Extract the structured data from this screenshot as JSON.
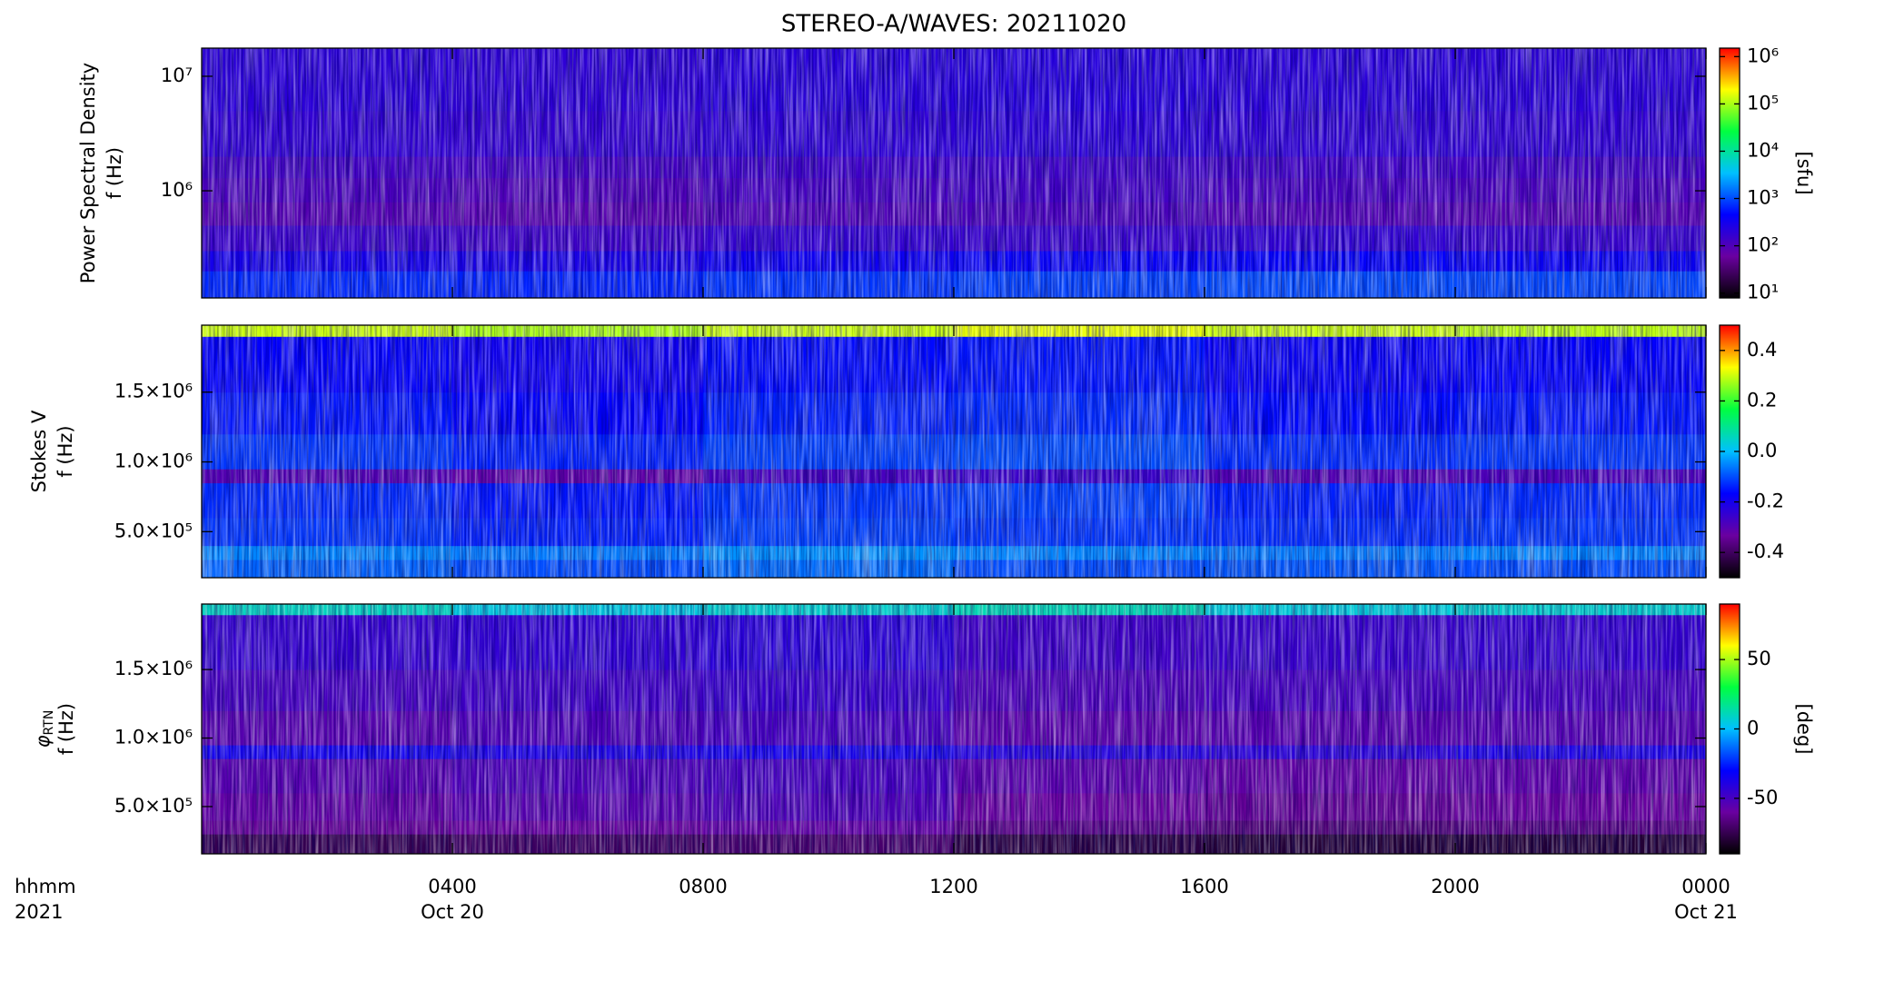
{
  "chart_data": {
    "type": "heatmap",
    "title": "STEREO-A/WAVES: 20211020",
    "xlim": [
      0,
      24
    ],
    "xticks": [
      {
        "value": 4,
        "label": "0400",
        "sublabel": "Oct 20"
      },
      {
        "value": 8,
        "label": "0800"
      },
      {
        "value": 12,
        "label": "1200"
      },
      {
        "value": 16,
        "label": "1600"
      },
      {
        "value": 20,
        "label": "2000"
      },
      {
        "value": 24,
        "label": "0000",
        "sublabel": "Oct 21"
      }
    ],
    "x_axis_labels": [
      "hhmm",
      "2021"
    ],
    "colormap": [
      "#000000",
      "#6a00a0",
      "#0000ff",
      "#00c0ff",
      "#00ff40",
      "#ffff00",
      "#ff0000"
    ],
    "panels": [
      {
        "ylabel": [
          "Power Spectral Density",
          "f (Hz)"
        ],
        "log_y": true,
        "ylim": [
          116000,
          17600000
        ],
        "yticks": [
          {
            "value": 1000000,
            "label": "10⁶"
          },
          {
            "value": 10000000,
            "label": "10⁷"
          }
        ],
        "x_bins": [
          0,
          4,
          8,
          12,
          16,
          20,
          24
        ],
        "y_bins": [
          116000,
          200000,
          300000,
          500000,
          800000,
          1300000,
          2000000,
          5000000,
          17600000
        ],
        "z": [
          [
            700,
            650,
            800,
            900,
            1000,
            950
          ],
          [
            300,
            280,
            350,
            400,
            420,
            380
          ],
          [
            150,
            140,
            170,
            160,
            180,
            160
          ],
          [
            90,
            85,
            100,
            110,
            95,
            90
          ],
          [
            110,
            100,
            120,
            130,
            115,
            110
          ],
          [
            130,
            125,
            140,
            140,
            135,
            130
          ],
          [
            180,
            170,
            190,
            200,
            185,
            180
          ],
          [
            200,
            190,
            210,
            220,
            205,
            200
          ]
        ],
        "log_c": true,
        "clim": [
          7.9,
          1510000
        ],
        "cticks": [
          {
            "value": 10,
            "label": "10¹"
          },
          {
            "value": 100,
            "label": "10²"
          },
          {
            "value": 1000,
            "label": "10³"
          },
          {
            "value": 10000,
            "label": "10⁴"
          },
          {
            "value": 100000,
            "label": "10⁵"
          },
          {
            "value": 1000000,
            "label": "10⁶"
          }
        ],
        "clabel": "[sfu]"
      },
      {
        "ylabel": [
          "Stokes V",
          "f (Hz)"
        ],
        "log_y": false,
        "ylim": [
          170000,
          1980000
        ],
        "yticks": [
          {
            "value": 500000,
            "label": "5.0×10⁵"
          },
          {
            "value": 1000000,
            "label": "1.0×10⁶"
          },
          {
            "value": 1500000,
            "label": "1.5×10⁶"
          }
        ],
        "x_bins": [
          0,
          4,
          8,
          12,
          16,
          20,
          24
        ],
        "y_bins": [
          170000,
          300000,
          400000,
          600000,
          850000,
          950000,
          1200000,
          1500000,
          1900000,
          1980000
        ],
        "z": [
          [
            -0.08,
            -0.1,
            -0.07,
            -0.1,
            -0.09,
            -0.1
          ],
          [
            -0.05,
            -0.06,
            -0.04,
            -0.05,
            -0.06,
            -0.05
          ],
          [
            -0.12,
            -0.14,
            -0.11,
            -0.12,
            -0.13,
            -0.12
          ],
          [
            -0.13,
            -0.15,
            -0.12,
            -0.11,
            -0.14,
            -0.13
          ],
          [
            -0.3,
            -0.32,
            -0.28,
            -0.26,
            -0.3,
            -0.29
          ],
          [
            -0.12,
            -0.14,
            -0.11,
            -0.1,
            -0.13,
            -0.12
          ],
          [
            -0.15,
            -0.17,
            -0.14,
            -0.13,
            -0.16,
            -0.15
          ],
          [
            -0.17,
            -0.19,
            -0.16,
            -0.15,
            -0.18,
            -0.17
          ],
          [
            0.3,
            0.28,
            0.3,
            0.32,
            0.3,
            0.29
          ]
        ],
        "log_c": false,
        "clim": [
          -0.5,
          0.5
        ],
        "cticks": [
          0.4,
          0.2,
          {
            "value": 0,
            "label": "0.0"
          },
          -0.2,
          -0.4
        ]
      },
      {
        "ylabel_symbol": "φ",
        "ylabel_subscript": "RTN",
        "ylabel": [
          "f (Hz)"
        ],
        "log_y": false,
        "ylim": [
          155000,
          1978000
        ],
        "yticks": [
          {
            "value": 500000,
            "label": "5.0×10⁵"
          },
          {
            "value": 1000000,
            "label": "1.0×10⁶"
          },
          {
            "value": 1500000,
            "label": "1.5×10⁶"
          }
        ],
        "x_bins": [
          0,
          4,
          8,
          12,
          16,
          20,
          24
        ],
        "y_bins": [
          155000,
          300000,
          400000,
          600000,
          850000,
          950000,
          1200000,
          1500000,
          1900000,
          1978000
        ],
        "z": [
          [
            -75,
            -72,
            -70,
            -78,
            -80,
            -80
          ],
          [
            -62,
            -60,
            -58,
            -65,
            -68,
            -66
          ],
          [
            -58,
            -55,
            -52,
            -60,
            -62,
            -60
          ],
          [
            -55,
            -52,
            -50,
            -56,
            -58,
            -57
          ],
          [
            -35,
            -38,
            -36,
            -40,
            -42,
            -38
          ],
          [
            -55,
            -52,
            -50,
            -56,
            -55,
            -54
          ],
          [
            -50,
            -48,
            -46,
            -52,
            -50,
            -50
          ],
          [
            -45,
            -44,
            -42,
            -48,
            -46,
            -45
          ],
          [
            10,
            5,
            8,
            12,
            6,
            8
          ]
        ],
        "log_c": false,
        "clim": [
          -90,
          90
        ],
        "cticks": [
          50,
          0,
          -50
        ],
        "clabel": "[deg]"
      }
    ]
  }
}
